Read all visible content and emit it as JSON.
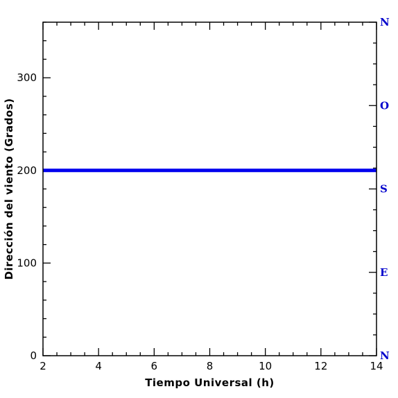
{
  "chart_data": {
    "type": "line",
    "title": "",
    "xlabel": "Tiempo Universal (h)",
    "ylabel": "Dirección del viento (Grados)",
    "xlim": [
      2,
      14
    ],
    "ylim": [
      0,
      360
    ],
    "xticks": [
      2,
      4,
      6,
      8,
      10,
      12,
      14
    ],
    "yticks": [
      0,
      100,
      200,
      300
    ],
    "right_axis_labels": [
      {
        "label": "N",
        "value": 0
      },
      {
        "label": "E",
        "value": 90
      },
      {
        "label": "S",
        "value": 180
      },
      {
        "label": "O",
        "value": 270
      },
      {
        "label": "N",
        "value": 360
      }
    ],
    "grid": false,
    "series": [
      {
        "color": "#0000ee",
        "x": [
          2,
          3,
          4,
          5,
          6,
          7,
          8,
          9,
          10,
          11,
          12,
          13,
          14
        ],
        "y": [
          200,
          200,
          200,
          200,
          200,
          200,
          200,
          200,
          200,
          200,
          200,
          200,
          200
        ]
      }
    ],
    "colors": {
      "axis": "#000000",
      "series": "#0000ee",
      "compass": "#0000cc"
    }
  }
}
